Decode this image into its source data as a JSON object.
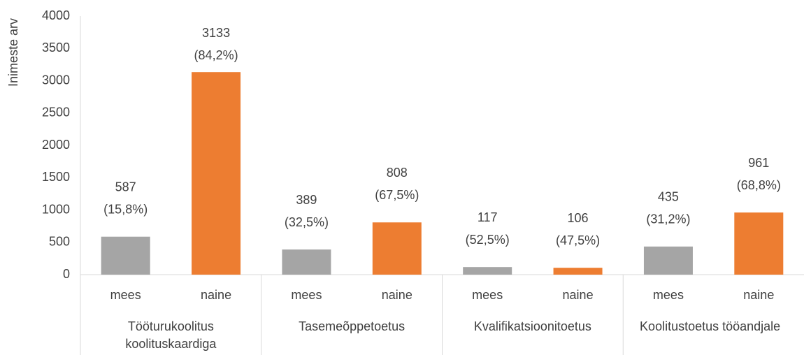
{
  "chart_data": {
    "type": "bar",
    "y_axis_label": "Inimeste arv",
    "categories": [
      "mees",
      "naine",
      "mees",
      "naine",
      "mees",
      "naine",
      "mees",
      "naine"
    ],
    "groups": [
      [
        "Tööturukoolitus",
        "koolituskaardiga"
      ],
      [
        "Tasemeõppetoetus"
      ],
      [
        "Kvalifikatsioonitoetus"
      ],
      [
        "Koolitustoetus tööandjale"
      ]
    ],
    "values": [
      587,
      3133,
      389,
      808,
      117,
      106,
      435,
      961
    ],
    "percentage_labels": [
      "(15,8%)",
      "(84,2%)",
      "(32,5%)",
      "(67,5%)",
      "(52,5%)",
      "(47,5%)",
      "(31,2%)",
      "(68,8%)"
    ],
    "colors": [
      "#a5a5a5",
      "#ed7d31",
      "#a5a5a5",
      "#ed7d31",
      "#a5a5a5",
      "#ed7d31",
      "#a5a5a5",
      "#ed7d31"
    ],
    "ylim": [
      0,
      4000
    ],
    "yticks": [
      0,
      500,
      1000,
      1500,
      2000,
      2500,
      3000,
      3500,
      4000
    ],
    "grid": false
  }
}
